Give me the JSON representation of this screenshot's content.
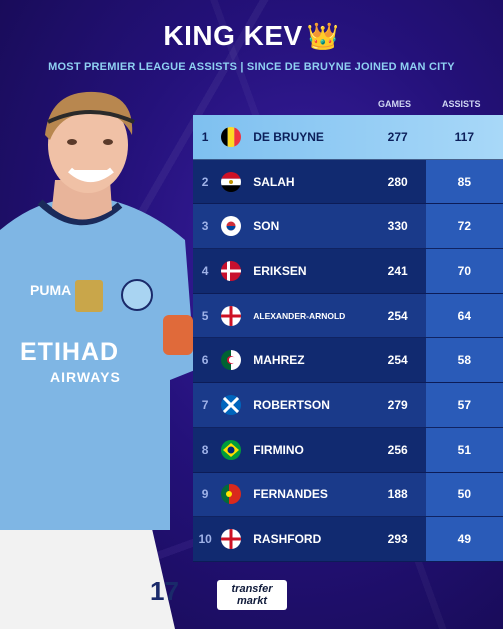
{
  "header": {
    "title": "KING KEV",
    "subtitle": "MOST PREMIER LEAGUE ASSISTS | SINCE DE BRUYNE JOINED MAN CITY"
  },
  "columns": {
    "games": "GAMES",
    "assists": "ASSISTS"
  },
  "rows": [
    {
      "rank": "1",
      "flag": "belgium",
      "name": "DE BRUYNE",
      "games": "277",
      "assists": "117"
    },
    {
      "rank": "2",
      "flag": "egypt",
      "name": "SALAH",
      "games": "280",
      "assists": "85"
    },
    {
      "rank": "3",
      "flag": "south-korea",
      "name": "SON",
      "games": "330",
      "assists": "72"
    },
    {
      "rank": "4",
      "flag": "denmark",
      "name": "ERIKSEN",
      "games": "241",
      "assists": "70"
    },
    {
      "rank": "5",
      "flag": "england",
      "name": "ALEXANDER-ARNOLD",
      "games": "254",
      "assists": "64"
    },
    {
      "rank": "6",
      "flag": "algeria",
      "name": "MAHREZ",
      "games": "254",
      "assists": "58"
    },
    {
      "rank": "7",
      "flag": "scotland",
      "name": "ROBERTSON",
      "games": "279",
      "assists": "57"
    },
    {
      "rank": "8",
      "flag": "brazil",
      "name": "FIRMINO",
      "games": "256",
      "assists": "51"
    },
    {
      "rank": "9",
      "flag": "portugal",
      "name": "FERNANDES",
      "games": "188",
      "assists": "50"
    },
    {
      "rank": "10",
      "flag": "england",
      "name": "RASHFORD",
      "games": "293",
      "assists": "49"
    }
  ],
  "player": {
    "shirt_sponsor": "ETIHAD",
    "shirt_sponsor_line2": "AIRWAYS",
    "shirt_number": "17"
  },
  "brand": {
    "logo_line1": "transfer",
    "logo_line2": "markt"
  },
  "colors": {
    "highlight": "#9fd2f6",
    "row_dark": "#112a70",
    "assist_cell": "#2a5bb8",
    "subtitle": "#8fd0f2"
  }
}
